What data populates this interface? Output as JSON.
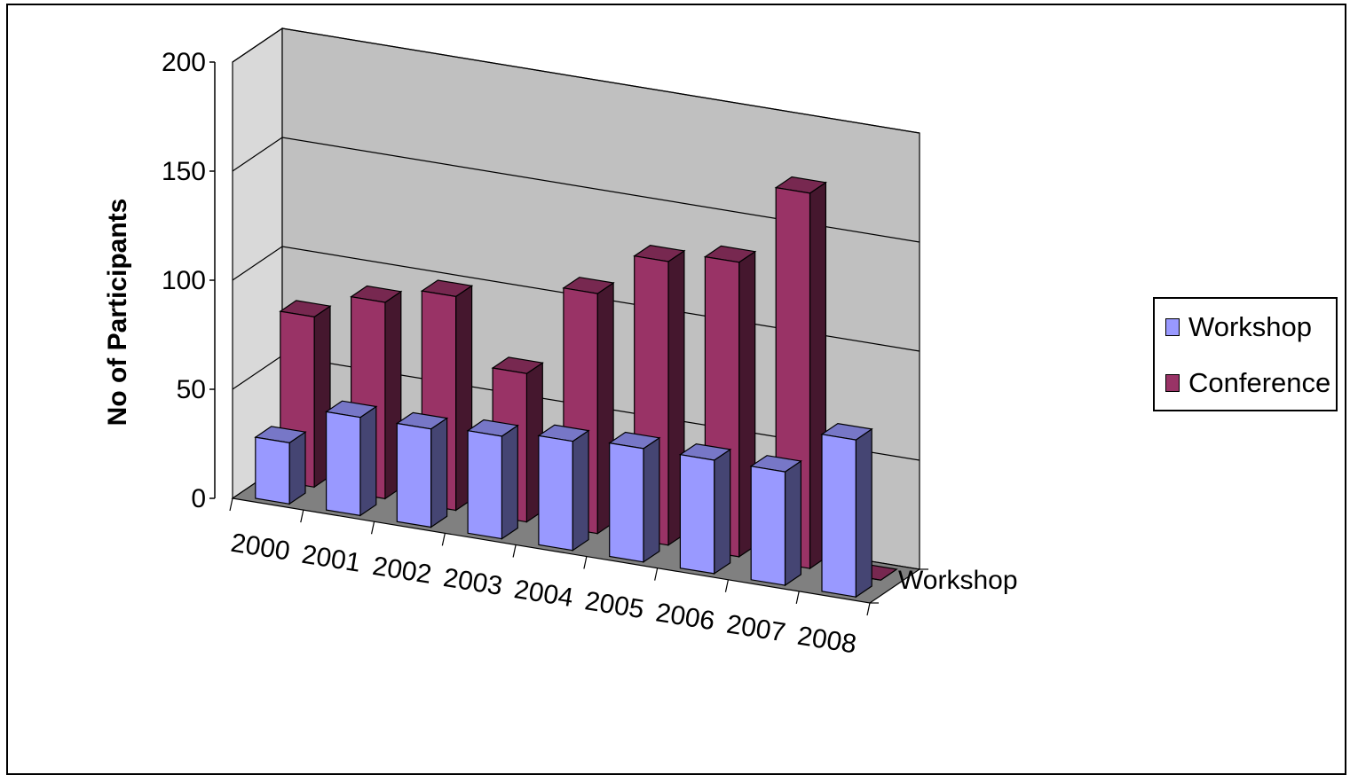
{
  "chart_data": {
    "type": "bar",
    "subtype": "3d-clustered-column",
    "title": "",
    "xlabel": "",
    "ylabel": "No of Participants",
    "ylim": [
      0,
      200
    ],
    "yticks": [
      "0",
      "50",
      "100",
      "150",
      "200"
    ],
    "categories": [
      "2000",
      "2001",
      "2002",
      "2003",
      "2004",
      "2005",
      "2006",
      "2007",
      "2008"
    ],
    "depth_axis_labels": [
      "Workshop"
    ],
    "series": [
      {
        "name": "Workshop",
        "color": "#9999ff",
        "values": [
          28,
          45,
          45,
          47,
          50,
          52,
          52,
          52,
          72
        ]
      },
      {
        "name": "Conference",
        "color": "#993366",
        "values": [
          78,
          90,
          98,
          68,
          110,
          130,
          135,
          172,
          0
        ]
      }
    ],
    "legend": {
      "position": "right",
      "items": [
        {
          "label": "Workshop",
          "color": "#9999ff"
        },
        {
          "label": "Conference",
          "color": "#993366"
        }
      ]
    },
    "grid": true
  }
}
